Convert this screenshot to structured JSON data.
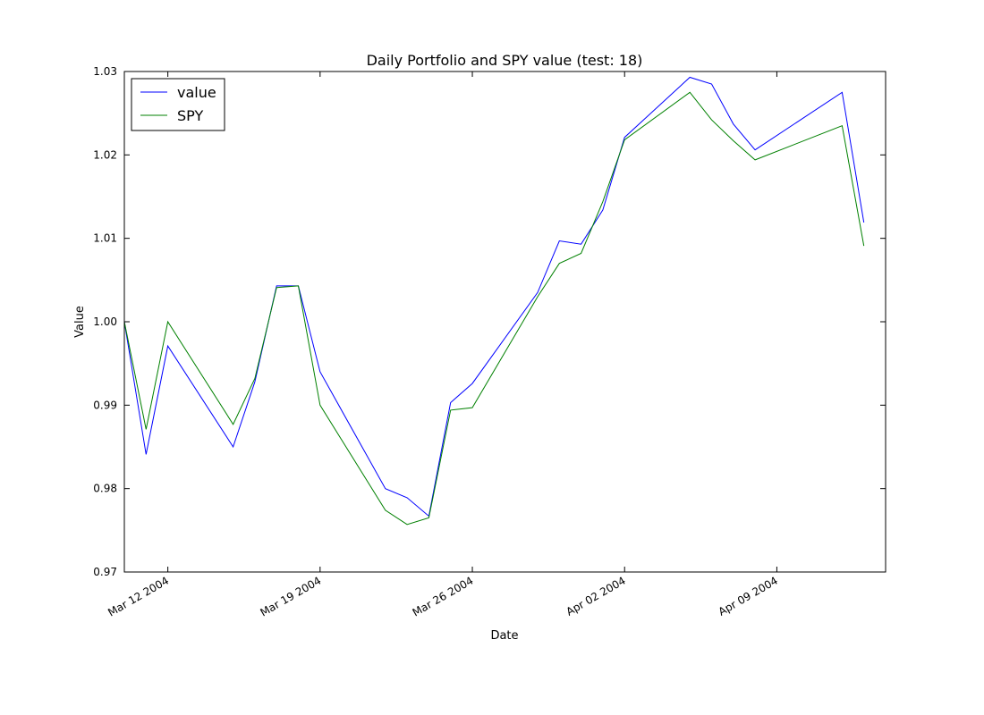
{
  "chart_data": {
    "type": "line",
    "title": "Daily Portfolio and SPY value (test: 18)",
    "xlabel": "Date",
    "ylabel": "Value",
    "x": [
      "2004-03-10",
      "2004-03-11",
      "2004-03-12",
      "2004-03-15",
      "2004-03-16",
      "2004-03-17",
      "2004-03-18",
      "2004-03-19",
      "2004-03-22",
      "2004-03-23",
      "2004-03-24",
      "2004-03-25",
      "2004-03-26",
      "2004-03-29",
      "2004-03-30",
      "2004-03-31",
      "2004-04-01",
      "2004-04-02",
      "2004-04-05",
      "2004-04-06",
      "2004-04-07",
      "2004-04-08",
      "2004-04-12",
      "2004-04-13"
    ],
    "series": [
      {
        "name": "value",
        "color": "#0000ff",
        "values": [
          1.0,
          0.9841,
          0.9971,
          0.985,
          0.9928,
          1.0043,
          1.0043,
          0.994,
          0.98,
          0.9789,
          0.9767,
          0.9903,
          0.9926,
          1.0035,
          1.0097,
          1.0093,
          1.0134,
          1.0221,
          1.0293,
          1.0285,
          1.0237,
          1.0206,
          1.0275,
          1.0119
        ]
      },
      {
        "name": "SPY",
        "color": "#008000",
        "values": [
          1.0,
          0.9871,
          1.0,
          0.9877,
          0.9932,
          1.0041,
          1.0043,
          0.99,
          0.9774,
          0.9757,
          0.9765,
          0.9894,
          0.9897,
          1.003,
          1.007,
          1.0082,
          1.0144,
          1.0218,
          1.0275,
          1.0242,
          1.0217,
          1.0194,
          1.0235,
          1.0091
        ]
      }
    ],
    "xlim": [
      "2004-03-10",
      "2004-04-14"
    ],
    "ylim": [
      0.97,
      1.03
    ],
    "xticks": [
      {
        "date": "2004-03-12",
        "label": "Mar 12 2004"
      },
      {
        "date": "2004-03-19",
        "label": "Mar 19 2004"
      },
      {
        "date": "2004-03-26",
        "label": "Mar 26 2004"
      },
      {
        "date": "2004-04-02",
        "label": "Apr 02 2004"
      },
      {
        "date": "2004-04-09",
        "label": "Apr 09 2004"
      }
    ],
    "yticks": [
      {
        "value": 0.97,
        "label": "0.97"
      },
      {
        "value": 0.98,
        "label": "0.98"
      },
      {
        "value": 0.99,
        "label": "0.99"
      },
      {
        "value": 1.0,
        "label": "1.00"
      },
      {
        "value": 1.01,
        "label": "1.01"
      },
      {
        "value": 1.02,
        "label": "1.02"
      },
      {
        "value": 1.03,
        "label": "1.03"
      }
    ],
    "legend": {
      "placement": "top-left",
      "entries": [
        "value",
        "SPY"
      ]
    },
    "grid": false
  }
}
